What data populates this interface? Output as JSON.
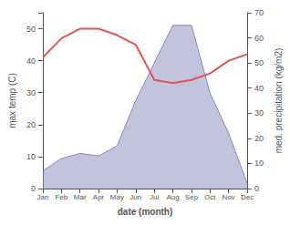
{
  "chart_data": {
    "type": "line",
    "xlabel": "date (month)",
    "ylabel": "max temp (C)",
    "y2label": "med. precipitation (kg/m2)",
    "categories": [
      "Jan",
      "Feb",
      "Mar",
      "Apr",
      "May",
      "Jun",
      "Jul",
      "Aug",
      "Sep",
      "Oct",
      "Nov",
      "Dec"
    ],
    "series": [
      {
        "type": "area",
        "color": "#8888bb",
        "axis": "y2",
        "values": [
          7,
          12,
          14,
          13,
          17,
          35,
          50,
          65,
          65,
          38,
          22,
          2
        ]
      },
      {
        "type": "line",
        "color": "#e05555",
        "values": [
          41,
          47,
          50,
          50,
          48,
          45,
          34,
          33,
          34,
          36,
          40,
          42
        ]
      }
    ],
    "ylim": [
      0,
      55
    ],
    "yticks": [
      0,
      10,
      20,
      30,
      40,
      50
    ],
    "y2lim": [
      0,
      70
    ],
    "y2ticks": [
      0,
      10,
      20,
      30,
      40,
      50,
      60,
      70
    ],
    "grid": false
  }
}
